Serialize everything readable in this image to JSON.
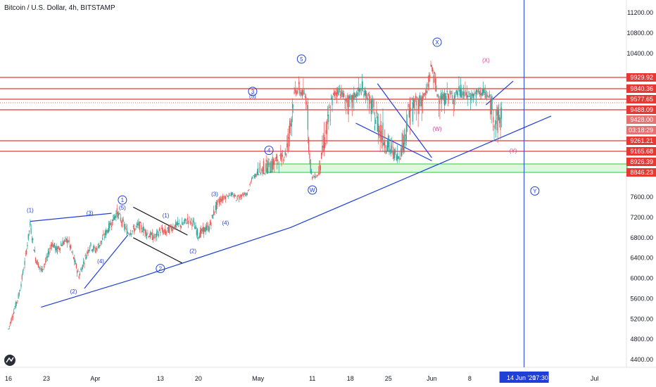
{
  "header": {
    "title": "Bitcoin / U.S. Dollar, 4h, BITSTAMP"
  },
  "colors": {
    "up": "#26a69a",
    "down": "#ef5350",
    "wave": "#1f3fd6",
    "resist": "#e53935",
    "support_box_fill": "rgba(120,230,120,0.25)",
    "support_box_stroke": "#27c93f",
    "cursor": "#1f3fd6",
    "magenta": "#e040a0"
  },
  "chart_data": {
    "type": "candlestick",
    "title": "Bitcoin / U.S. Dollar, 4h, BITSTAMP",
    "y_ticks": [
      11200,
      10800,
      10400,
      7600,
      7200,
      6800,
      6400,
      6000,
      5600,
      5200,
      4800,
      4400
    ],
    "price_labels": [
      {
        "text": "9929.92",
        "color": "#e53935"
      },
      {
        "text": "9840.36",
        "color": "#e53935"
      },
      {
        "text": "9577.65",
        "color": "#e53935"
      },
      {
        "text": "9488.09",
        "color": "#e53935"
      },
      {
        "text": "9428.00",
        "color": "#e57373"
      },
      {
        "text": "03:18:29",
        "color": "#e57373"
      },
      {
        "text": "9261.21",
        "color": "#e53935"
      },
      {
        "text": "9165.68",
        "color": "#e53935"
      },
      {
        "text": "8926.39",
        "color": "#e53935"
      },
      {
        "text": "8846.23",
        "color": "#e53935"
      }
    ],
    "x_ticks": [
      {
        "label": "16",
        "day": 0
      },
      {
        "label": "23",
        "day": 7
      },
      {
        "label": "Apr",
        "day": 16
      },
      {
        "label": "13",
        "day": 28
      },
      {
        "label": "20",
        "day": 35
      },
      {
        "label": "May",
        "day": 46
      },
      {
        "label": "11",
        "day": 56
      },
      {
        "label": "18",
        "day": 63
      },
      {
        "label": "25",
        "day": 70
      },
      {
        "label": "Jun",
        "day": 78
      },
      {
        "label": "8",
        "day": 85
      },
      {
        "label": "22",
        "day": 99
      },
      {
        "label": "Jul",
        "day": 108
      }
    ],
    "cursor": {
      "date_label": "14 Jun '20",
      "time_label": "17:30",
      "day": 91
    },
    "resistance_levels": [
      9929.92,
      9840.36,
      9577.65,
      9488.09,
      9261.21,
      9165.68
    ],
    "support_zone": [
      8846.23,
      8926.39
    ],
    "price_path": [
      [
        0,
        5000
      ],
      [
        1,
        5350
      ],
      [
        2,
        5700
      ],
      [
        3,
        6300
      ],
      [
        4,
        7050
      ],
      [
        5,
        6400
      ],
      [
        6,
        6150
      ],
      [
        7,
        6350
      ],
      [
        8,
        6700
      ],
      [
        9,
        6550
      ],
      [
        10,
        6700
      ],
      [
        11,
        6750
      ],
      [
        12,
        6400
      ],
      [
        13,
        6050
      ],
      [
        14,
        6350
      ],
      [
        15,
        6650
      ],
      [
        16,
        6550
      ],
      [
        17,
        6700
      ],
      [
        18,
        6900
      ],
      [
        19,
        7100
      ],
      [
        20,
        7300
      ],
      [
        21,
        7100
      ],
      [
        22,
        6900
      ],
      [
        23,
        6950
      ],
      [
        24,
        7050
      ],
      [
        25,
        6950
      ],
      [
        26,
        6850
      ],
      [
        27,
        6800
      ],
      [
        28,
        6950
      ],
      [
        29,
        6900
      ],
      [
        30,
        7000
      ],
      [
        31,
        7050
      ],
      [
        32,
        7050
      ],
      [
        33,
        7150
      ],
      [
        34,
        7100
      ],
      [
        35,
        6850
      ],
      [
        36,
        6950
      ],
      [
        37,
        7000
      ],
      [
        38,
        7350
      ],
      [
        39,
        7550
      ],
      [
        40,
        7650
      ],
      [
        41,
        7750
      ],
      [
        42,
        7600
      ],
      [
        43,
        7700
      ],
      [
        44,
        7750
      ],
      [
        45,
        8600
      ],
      [
        46,
        8800
      ],
      [
        47,
        8850
      ],
      [
        48,
        8900
      ],
      [
        49,
        8950
      ],
      [
        50,
        9000
      ],
      [
        51,
        9100
      ],
      [
        52,
        9400
      ],
      [
        53,
        9800
      ],
      [
        54,
        9750
      ],
      [
        55,
        9600
      ],
      [
        56,
        8600
      ],
      [
        57,
        8700
      ],
      [
        58,
        9200
      ],
      [
        59,
        9400
      ],
      [
        60,
        9700
      ],
      [
        61,
        9800
      ],
      [
        62,
        9600
      ],
      [
        63,
        9550
      ],
      [
        64,
        9700
      ],
      [
        65,
        9800
      ],
      [
        66,
        9700
      ],
      [
        67,
        9500
      ],
      [
        68,
        9400
      ],
      [
        69,
        9300
      ],
      [
        70,
        9200
      ],
      [
        71,
        9100
      ],
      [
        72,
        9050
      ],
      [
        73,
        9300
      ],
      [
        74,
        9500
      ],
      [
        75,
        9550
      ],
      [
        76,
        9600
      ],
      [
        77,
        9700
      ],
      [
        78,
        10150
      ],
      [
        79,
        9700
      ],
      [
        80,
        9600
      ],
      [
        81,
        9700
      ],
      [
        82,
        9650
      ],
      [
        83,
        9750
      ],
      [
        84,
        9700
      ],
      [
        85,
        9650
      ],
      [
        86,
        9700
      ],
      [
        87,
        9750
      ],
      [
        88,
        9700
      ],
      [
        89,
        9550
      ],
      [
        90,
        9400
      ],
      [
        91,
        9450
      ]
    ],
    "wave_labels": [
      {
        "text": "(1)",
        "day": 4,
        "price": 7300
      },
      {
        "text": "(3)",
        "day": 15,
        "price": 7250
      },
      {
        "text": "(2)",
        "day": 12,
        "price": 5700
      },
      {
        "text": "(4)",
        "day": 17,
        "price": 6300
      },
      {
        "text": "1",
        "day": 21,
        "price": 7500,
        "circle": true
      },
      {
        "text": "(5)",
        "day": 21,
        "price": 7350
      },
      {
        "text": "(1)",
        "day": 29,
        "price": 7200
      },
      {
        "text": "2",
        "day": 28,
        "price": 6150,
        "circle": true
      },
      {
        "text": "(2)",
        "day": 34,
        "price": 6500
      },
      {
        "text": "(3)",
        "day": 38,
        "price": 7650
      },
      {
        "text": "(4)",
        "day": 40,
        "price": 7050
      },
      {
        "text": "3",
        "day": 45,
        "price": 9720,
        "circle": true
      },
      {
        "text": "(5)",
        "day": 45,
        "price": 9600
      },
      {
        "text": "4",
        "day": 48,
        "price": 9140,
        "circle": true
      },
      {
        "text": "5",
        "day": 54,
        "price": 10250,
        "circle": true
      },
      {
        "text": "W",
        "day": 56,
        "price": 7850,
        "circle": true
      },
      {
        "text": "X",
        "day": 79,
        "price": 10580,
        "circle": true
      },
      {
        "text": "(W)",
        "day": 79,
        "price": 9340,
        "color": "magenta"
      },
      {
        "text": "(X)",
        "day": 88,
        "price": 10230,
        "color": "magenta"
      },
      {
        "text": "(Y)",
        "day": 93,
        "price": 9130,
        "color": "magenta"
      },
      {
        "text": "Y",
        "day": 97,
        "price": 7800,
        "circle": true
      }
    ]
  }
}
